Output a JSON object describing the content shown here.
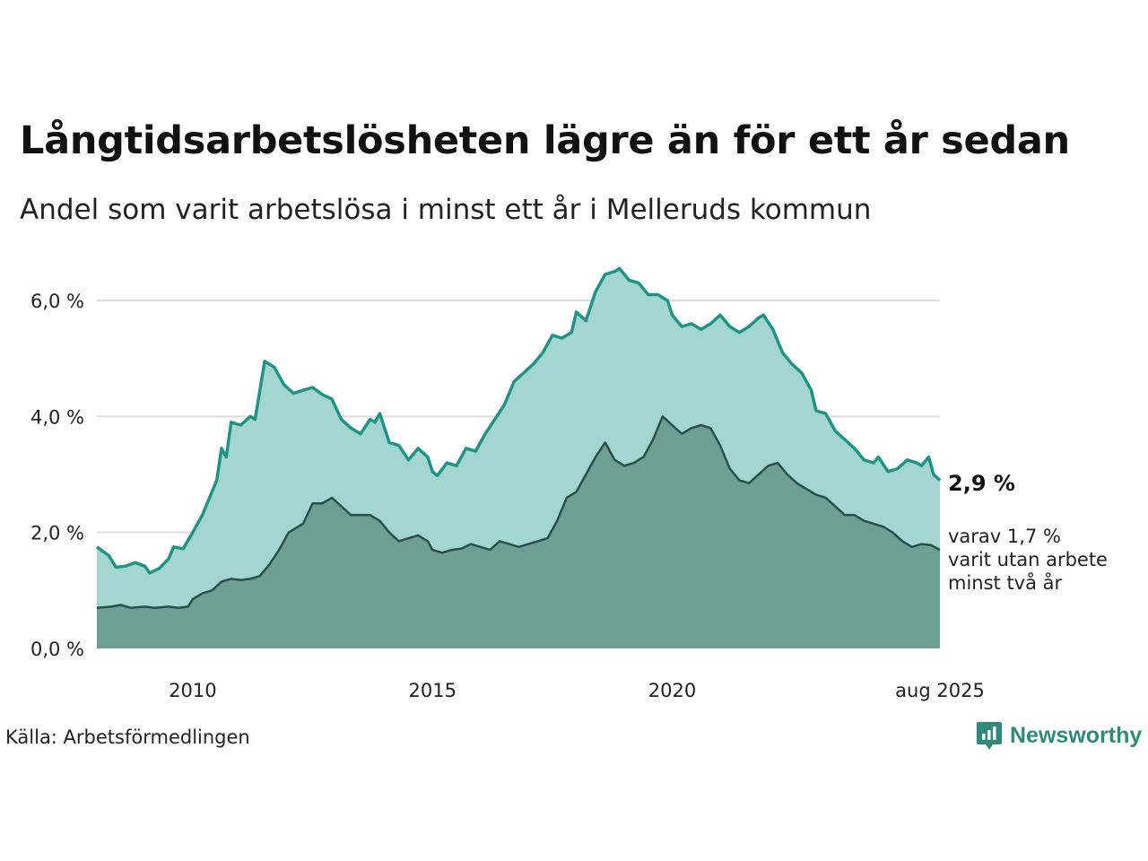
{
  "title": "Långtidsarbetslösheten lägre än för ett år sedan",
  "subtitle": "Andel som varit arbetslösa i minst ett år i Melleruds kommun",
  "source": "Källa: Arbetsförmedlingen",
  "brand": {
    "name": "Newsworthy",
    "icon": "newsworthy-logo-icon"
  },
  "colors": {
    "series1_line": "#1f9484",
    "series1_fill": "#a3d6d0",
    "series2_line": "#2a4f49",
    "series2_fill": "#6f9e97",
    "grid": "#dddddd",
    "brand": "#2e8b7c"
  },
  "annotations": {
    "last_value_main": "2,9 %",
    "last_value_sub_line1": "varav 1,7 %",
    "last_value_sub_line2": "varit utan arbete",
    "last_value_sub_line3": "minst två år"
  },
  "chart_data": {
    "type": "area",
    "grid": true,
    "legend": "none",
    "xlim": [
      2008.0,
      2025.583
    ],
    "ylim": [
      0,
      6.8
    ],
    "yticks": [
      {
        "value": 0,
        "label": "0,0 %"
      },
      {
        "value": 2,
        "label": "2,0 %"
      },
      {
        "value": 4,
        "label": "4,0 %"
      },
      {
        "value": 6,
        "label": "6,0 %"
      }
    ],
    "xticks": [
      {
        "value": 2010,
        "label": "2010"
      },
      {
        "value": 2015,
        "label": "2015"
      },
      {
        "value": 2020,
        "label": "2020"
      },
      {
        "value": 2025.583,
        "label": "aug 2025"
      }
    ],
    "series": [
      {
        "points": [
          [
            2008.0,
            1.75
          ],
          [
            2008.25,
            1.6
          ],
          [
            2008.4,
            1.4
          ],
          [
            2008.6,
            1.42
          ],
          [
            2008.8,
            1.48
          ],
          [
            2009.0,
            1.42
          ],
          [
            2009.1,
            1.3
          ],
          [
            2009.3,
            1.38
          ],
          [
            2009.5,
            1.55
          ],
          [
            2009.6,
            1.75
          ],
          [
            2009.8,
            1.72
          ],
          [
            2010.0,
            2.0
          ],
          [
            2010.2,
            2.3
          ],
          [
            2010.4,
            2.7
          ],
          [
            2010.5,
            2.9
          ],
          [
            2010.6,
            3.45
          ],
          [
            2010.7,
            3.3
          ],
          [
            2010.8,
            3.9
          ],
          [
            2011.0,
            3.85
          ],
          [
            2011.2,
            4.0
          ],
          [
            2011.3,
            3.95
          ],
          [
            2011.5,
            4.95
          ],
          [
            2011.7,
            4.85
          ],
          [
            2011.9,
            4.55
          ],
          [
            2012.1,
            4.4
          ],
          [
            2012.3,
            4.45
          ],
          [
            2012.5,
            4.5
          ],
          [
            2012.7,
            4.38
          ],
          [
            2012.9,
            4.3
          ],
          [
            2013.1,
            3.95
          ],
          [
            2013.3,
            3.8
          ],
          [
            2013.5,
            3.7
          ],
          [
            2013.7,
            3.95
          ],
          [
            2013.8,
            3.9
          ],
          [
            2013.9,
            4.05
          ],
          [
            2014.1,
            3.55
          ],
          [
            2014.3,
            3.5
          ],
          [
            2014.5,
            3.25
          ],
          [
            2014.7,
            3.45
          ],
          [
            2014.9,
            3.3
          ],
          [
            2015.0,
            3.05
          ],
          [
            2015.1,
            2.98
          ],
          [
            2015.3,
            3.2
          ],
          [
            2015.5,
            3.15
          ],
          [
            2015.7,
            3.45
          ],
          [
            2015.9,
            3.4
          ],
          [
            2016.1,
            3.7
          ],
          [
            2016.3,
            3.95
          ],
          [
            2016.5,
            4.2
          ],
          [
            2016.7,
            4.6
          ],
          [
            2016.9,
            4.75
          ],
          [
            2017.1,
            4.9
          ],
          [
            2017.3,
            5.1
          ],
          [
            2017.5,
            5.4
          ],
          [
            2017.7,
            5.35
          ],
          [
            2017.9,
            5.45
          ],
          [
            2018.0,
            5.8
          ],
          [
            2018.2,
            5.65
          ],
          [
            2018.4,
            6.15
          ],
          [
            2018.6,
            6.45
          ],
          [
            2018.8,
            6.5
          ],
          [
            2018.9,
            6.55
          ],
          [
            2019.1,
            6.35
          ],
          [
            2019.3,
            6.3
          ],
          [
            2019.5,
            6.1
          ],
          [
            2019.7,
            6.1
          ],
          [
            2019.9,
            6.0
          ],
          [
            2020.0,
            5.75
          ],
          [
            2020.2,
            5.55
          ],
          [
            2020.4,
            5.6
          ],
          [
            2020.6,
            5.5
          ],
          [
            2020.8,
            5.6
          ],
          [
            2021.0,
            5.75
          ],
          [
            2021.2,
            5.55
          ],
          [
            2021.4,
            5.45
          ],
          [
            2021.6,
            5.55
          ],
          [
            2021.8,
            5.7
          ],
          [
            2021.9,
            5.75
          ],
          [
            2022.1,
            5.5
          ],
          [
            2022.3,
            5.1
          ],
          [
            2022.5,
            4.9
          ],
          [
            2022.7,
            4.75
          ],
          [
            2022.9,
            4.45
          ],
          [
            2023.0,
            4.1
          ],
          [
            2023.2,
            4.05
          ],
          [
            2023.4,
            3.75
          ],
          [
            2023.6,
            3.6
          ],
          [
            2023.8,
            3.45
          ],
          [
            2024.0,
            3.25
          ],
          [
            2024.2,
            3.2
          ],
          [
            2024.3,
            3.3
          ],
          [
            2024.5,
            3.05
          ],
          [
            2024.7,
            3.1
          ],
          [
            2024.9,
            3.25
          ],
          [
            2025.1,
            3.2
          ],
          [
            2025.2,
            3.15
          ],
          [
            2025.35,
            3.3
          ],
          [
            2025.45,
            3.0
          ],
          [
            2025.583,
            2.9
          ]
        ]
      },
      {
        "points": [
          [
            2008.0,
            0.7
          ],
          [
            2008.3,
            0.72
          ],
          [
            2008.5,
            0.75
          ],
          [
            2008.7,
            0.7
          ],
          [
            2009.0,
            0.72
          ],
          [
            2009.2,
            0.7
          ],
          [
            2009.5,
            0.72
          ],
          [
            2009.7,
            0.7
          ],
          [
            2009.9,
            0.72
          ],
          [
            2010.0,
            0.85
          ],
          [
            2010.2,
            0.95
          ],
          [
            2010.4,
            1.0
          ],
          [
            2010.6,
            1.15
          ],
          [
            2010.8,
            1.2
          ],
          [
            2011.0,
            1.18
          ],
          [
            2011.2,
            1.2
          ],
          [
            2011.4,
            1.25
          ],
          [
            2011.6,
            1.45
          ],
          [
            2011.8,
            1.7
          ],
          [
            2012.0,
            2.0
          ],
          [
            2012.2,
            2.1
          ],
          [
            2012.3,
            2.15
          ],
          [
            2012.5,
            2.5
          ],
          [
            2012.7,
            2.5
          ],
          [
            2012.9,
            2.6
          ],
          [
            2013.1,
            2.45
          ],
          [
            2013.3,
            2.3
          ],
          [
            2013.5,
            2.3
          ],
          [
            2013.7,
            2.3
          ],
          [
            2013.9,
            2.2
          ],
          [
            2014.1,
            2.0
          ],
          [
            2014.3,
            1.85
          ],
          [
            2014.5,
            1.9
          ],
          [
            2014.7,
            1.95
          ],
          [
            2014.9,
            1.85
          ],
          [
            2015.0,
            1.7
          ],
          [
            2015.2,
            1.65
          ],
          [
            2015.4,
            1.7
          ],
          [
            2015.6,
            1.72
          ],
          [
            2015.8,
            1.8
          ],
          [
            2016.0,
            1.75
          ],
          [
            2016.2,
            1.7
          ],
          [
            2016.4,
            1.85
          ],
          [
            2016.6,
            1.8
          ],
          [
            2016.8,
            1.75
          ],
          [
            2017.0,
            1.8
          ],
          [
            2017.2,
            1.85
          ],
          [
            2017.4,
            1.9
          ],
          [
            2017.6,
            2.2
          ],
          [
            2017.8,
            2.6
          ],
          [
            2018.0,
            2.7
          ],
          [
            2018.2,
            3.0
          ],
          [
            2018.4,
            3.3
          ],
          [
            2018.6,
            3.55
          ],
          [
            2018.8,
            3.25
          ],
          [
            2019.0,
            3.15
          ],
          [
            2019.2,
            3.2
          ],
          [
            2019.4,
            3.3
          ],
          [
            2019.6,
            3.6
          ],
          [
            2019.8,
            4.0
          ],
          [
            2020.0,
            3.85
          ],
          [
            2020.2,
            3.7
          ],
          [
            2020.4,
            3.8
          ],
          [
            2020.6,
            3.85
          ],
          [
            2020.8,
            3.8
          ],
          [
            2021.0,
            3.5
          ],
          [
            2021.2,
            3.1
          ],
          [
            2021.4,
            2.9
          ],
          [
            2021.6,
            2.85
          ],
          [
            2021.8,
            3.0
          ],
          [
            2022.0,
            3.15
          ],
          [
            2022.2,
            3.2
          ],
          [
            2022.4,
            3.0
          ],
          [
            2022.6,
            2.85
          ],
          [
            2022.8,
            2.75
          ],
          [
            2023.0,
            2.65
          ],
          [
            2023.2,
            2.6
          ],
          [
            2023.4,
            2.45
          ],
          [
            2023.6,
            2.3
          ],
          [
            2023.8,
            2.3
          ],
          [
            2024.0,
            2.2
          ],
          [
            2024.2,
            2.15
          ],
          [
            2024.4,
            2.1
          ],
          [
            2024.6,
            2.0
          ],
          [
            2024.8,
            1.85
          ],
          [
            2025.0,
            1.75
          ],
          [
            2025.2,
            1.8
          ],
          [
            2025.4,
            1.78
          ],
          [
            2025.583,
            1.7
          ]
        ]
      }
    ]
  }
}
